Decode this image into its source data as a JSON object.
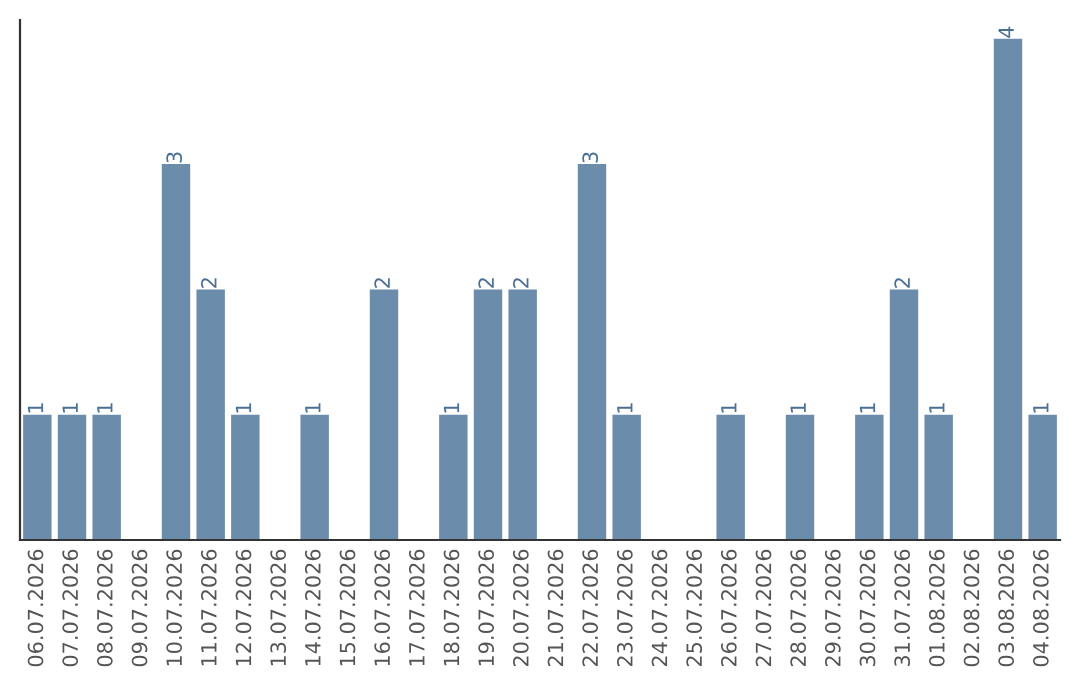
{
  "chart_data": {
    "type": "bar",
    "categories": [
      "06.07.2026",
      "07.07.2026",
      "08.07.2026",
      "09.07.2026",
      "10.07.2026",
      "11.07.2026",
      "12.07.2026",
      "13.07.2026",
      "14.07.2026",
      "15.07.2026",
      "16.07.2026",
      "17.07.2026",
      "18.07.2026",
      "19.07.2026",
      "20.07.2026",
      "21.07.2026",
      "22.07.2026",
      "23.07.2026",
      "24.07.2026",
      "25.07.2026",
      "26.07.2026",
      "27.07.2026",
      "28.07.2026",
      "29.07.2026",
      "30.07.2026",
      "31.07.2026",
      "01.08.2026",
      "02.08.2026",
      "03.08.2026",
      "04.08.2026"
    ],
    "values": [
      1,
      1,
      1,
      0,
      3,
      2,
      1,
      0,
      1,
      0,
      2,
      0,
      1,
      2,
      2,
      0,
      3,
      1,
      0,
      0,
      1,
      0,
      1,
      0,
      1,
      2,
      1,
      0,
      4,
      1
    ],
    "value_labels": [
      "1",
      "1",
      "1",
      null,
      "3",
      "2",
      "1",
      null,
      "1",
      null,
      "2",
      null,
      "1",
      "2",
      "2",
      null,
      "3",
      "1",
      null,
      null,
      "1",
      null,
      "1",
      null,
      "1",
      "2",
      "1",
      null,
      "4",
      "1"
    ],
    "color": "#6b8caa",
    "ylim": [
      0,
      4.15
    ],
    "tick_labels": "x",
    "grid": false,
    "legend": false
  }
}
